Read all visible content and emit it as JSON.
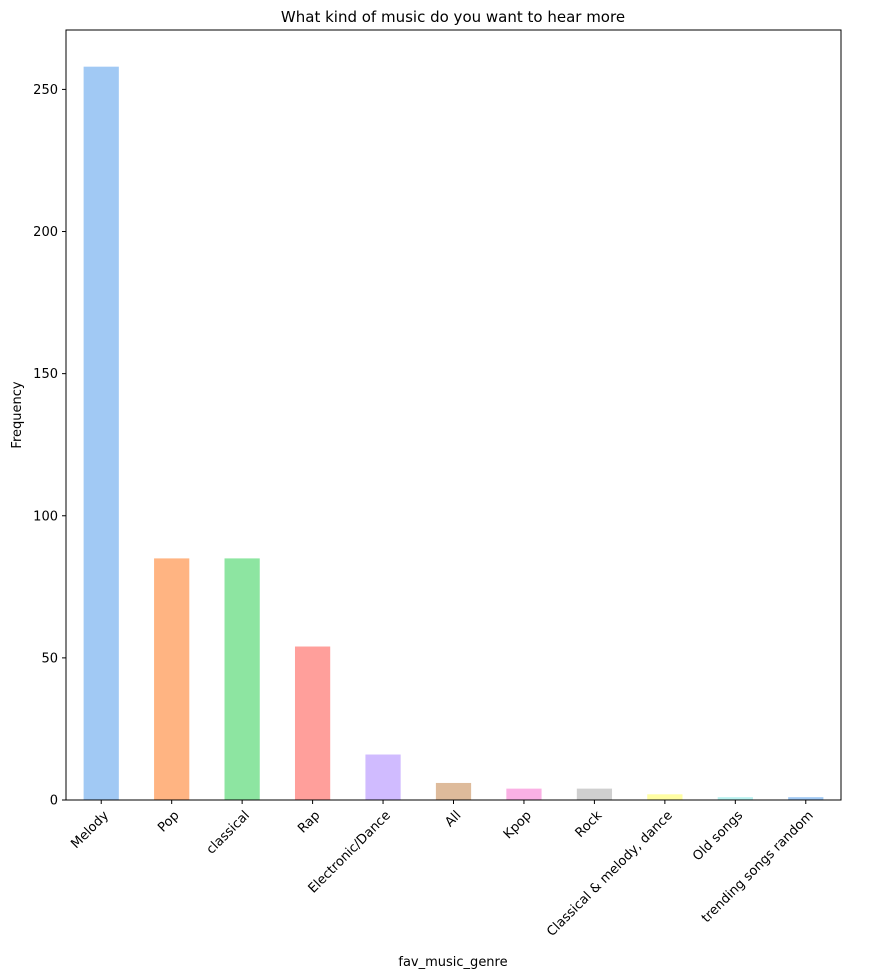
{
  "chart_data": {
    "type": "bar",
    "title": "What kind of music do you want to hear more",
    "xlabel": "fav_music_genre",
    "ylabel": "Frequency",
    "categories": [
      "Melody",
      "Pop",
      "classical",
      "Rap",
      "Electronic/Dance",
      "All",
      "Kpop",
      "Rock",
      "Classical & melody, dance",
      "Old songs",
      "trending songs random"
    ],
    "values": [
      258,
      85,
      85,
      54,
      16,
      6,
      4,
      4,
      2,
      1,
      1
    ],
    "ylim": [
      0,
      270.9
    ],
    "yticks": [
      0,
      50,
      100,
      150,
      200,
      250
    ],
    "grid": false,
    "legend": "none",
    "colors": [
      "#a1c9f4",
      "#ffb482",
      "#8de5a1",
      "#ff9f9b",
      "#d0bbff",
      "#debb9b",
      "#fab0e4",
      "#cfcfcf",
      "#fffea3",
      "#b9f2f0",
      "#a1c9f4"
    ]
  }
}
